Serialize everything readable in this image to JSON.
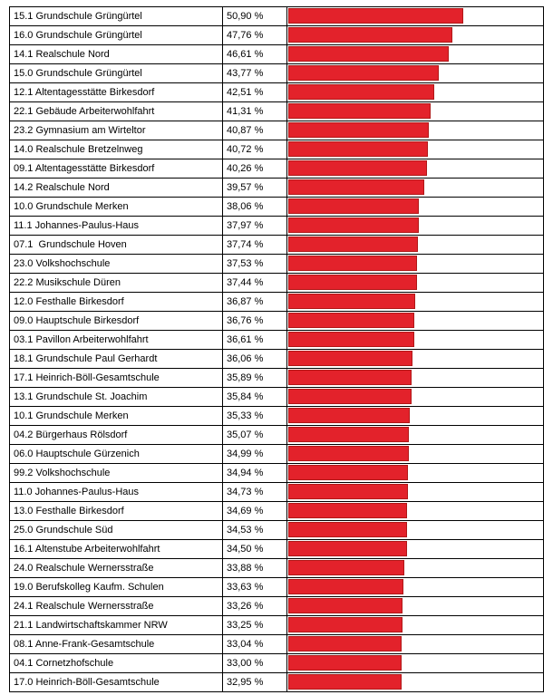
{
  "table": {
    "rows": [
      {
        "name": "15.1 Grundschule Grüngürtel",
        "value": 50.9,
        "label": "50,90 %"
      },
      {
        "name": "16.0 Grundschule Grüngürtel",
        "value": 47.76,
        "label": "47,76 %"
      },
      {
        "name": "14.1 Realschule Nord",
        "value": 46.61,
        "label": "46,61 %"
      },
      {
        "name": "15.0 Grundschule Grüngürtel",
        "value": 43.77,
        "label": "43,77 %"
      },
      {
        "name": "12.1 Altentagesstätte Birkesdorf",
        "value": 42.51,
        "label": "42,51 %"
      },
      {
        "name": "22.1 Gebäude Arbeiterwohlfahrt",
        "value": 41.31,
        "label": "41,31 %"
      },
      {
        "name": "23.2 Gymnasium am Wirteltor",
        "value": 40.87,
        "label": "40,87 %"
      },
      {
        "name": "14.0 Realschule Bretzelnweg",
        "value": 40.72,
        "label": "40,72 %"
      },
      {
        "name": "09.1 Altentagesstätte Birkesdorf",
        "value": 40.26,
        "label": "40,26 %"
      },
      {
        "name": "14.2 Realschule Nord",
        "value": 39.57,
        "label": "39,57 %"
      },
      {
        "name": "10.0 Grundschule Merken",
        "value": 38.06,
        "label": "38,06 %"
      },
      {
        "name": "11.1 Johannes-Paulus-Haus",
        "value": 37.97,
        "label": "37,97 %"
      },
      {
        "name": "07.1  Grundschule Hoven",
        "value": 37.74,
        "label": "37,74 %"
      },
      {
        "name": "23.0 Volkshochschule",
        "value": 37.53,
        "label": "37,53 %"
      },
      {
        "name": "22.2 Musikschule Düren",
        "value": 37.44,
        "label": "37,44 %"
      },
      {
        "name": "12.0 Festhalle Birkesdorf",
        "value": 36.87,
        "label": "36,87 %"
      },
      {
        "name": "09.0 Hauptschule Birkesdorf",
        "value": 36.76,
        "label": "36,76 %"
      },
      {
        "name": "03.1 Pavillon Arbeiterwohlfahrt",
        "value": 36.61,
        "label": "36,61 %"
      },
      {
        "name": "18.1 Grundschule Paul Gerhardt",
        "value": 36.06,
        "label": "36,06 %"
      },
      {
        "name": "17.1 Heinrich-Böll-Gesamtschule",
        "value": 35.89,
        "label": "35,89 %"
      },
      {
        "name": "13.1 Grundschule St. Joachim",
        "value": 35.84,
        "label": "35,84 %"
      },
      {
        "name": "10.1 Grundschule Merken",
        "value": 35.33,
        "label": "35,33 %"
      },
      {
        "name": "04.2 Bürgerhaus Rölsdorf",
        "value": 35.07,
        "label": "35,07 %"
      },
      {
        "name": "06.0 Hauptschule Gürzenich",
        "value": 34.99,
        "label": "34,99 %"
      },
      {
        "name": "99.2 Volkshochschule",
        "value": 34.94,
        "label": "34,94 %"
      },
      {
        "name": "11.0 Johannes-Paulus-Haus",
        "value": 34.73,
        "label": "34,73 %"
      },
      {
        "name": "13.0 Festhalle Birkesdorf",
        "value": 34.69,
        "label": "34,69 %"
      },
      {
        "name": "25.0 Grundschule Süd",
        "value": 34.53,
        "label": "34,53 %"
      },
      {
        "name": "16.1 Altenstube Arbeiterwohlfahrt",
        "value": 34.5,
        "label": "34,50 %"
      },
      {
        "name": "24.0 Realschule Wernersstraße",
        "value": 33.88,
        "label": "33,88 %"
      },
      {
        "name": "19.0 Berufskolleg Kaufm. Schulen",
        "value": 33.63,
        "label": "33,63 %"
      },
      {
        "name": "24.1 Realschule Wernersstraße",
        "value": 33.26,
        "label": "33,26 %"
      },
      {
        "name": "21.1 Landwirtschaftskammer NRW",
        "value": 33.25,
        "label": "33,25 %"
      },
      {
        "name": "08.1 Anne-Frank-Gesamtschule",
        "value": 33.04,
        "label": "33,04 %"
      },
      {
        "name": "04.1 Cornetzhofschule",
        "value": 33.0,
        "label": "33,00 %"
      },
      {
        "name": "17.0 Heinrich-Böll-Gesamtschule",
        "value": 32.95,
        "label": "32,95 %"
      }
    ],
    "color": "#e3222b"
  }
}
